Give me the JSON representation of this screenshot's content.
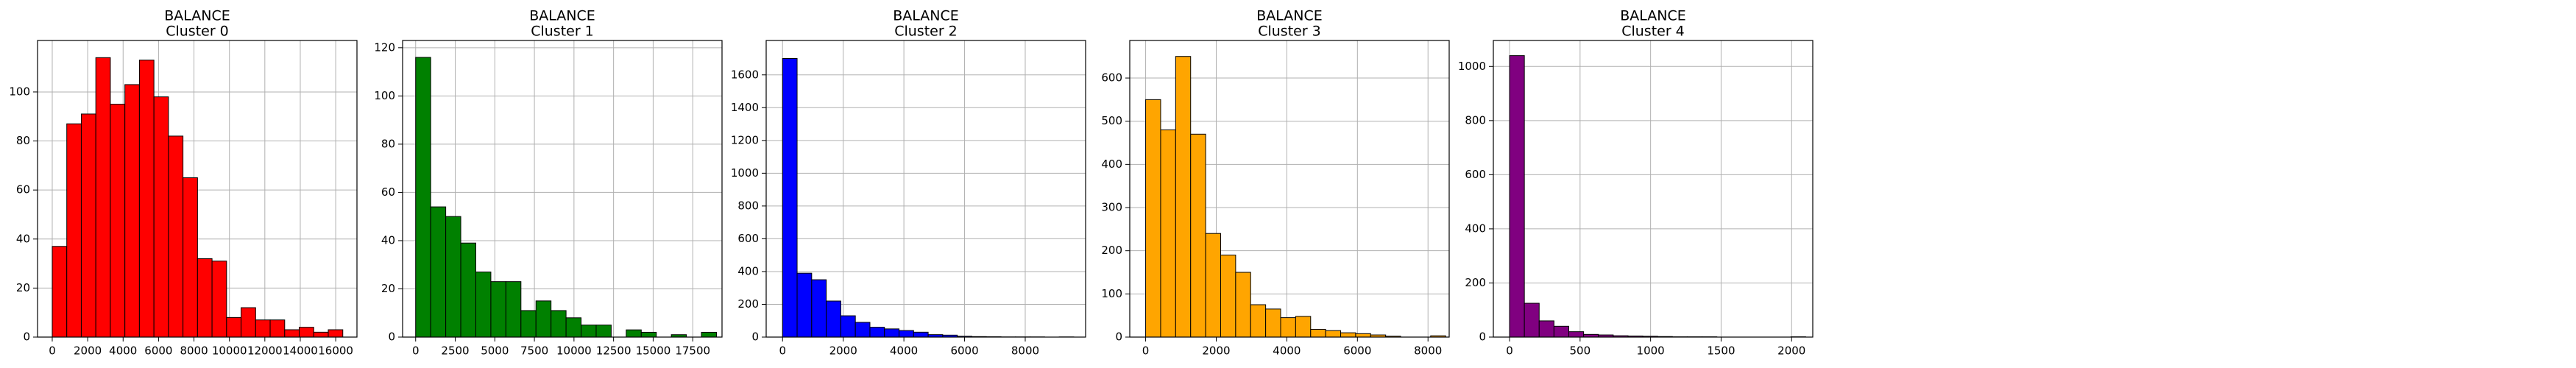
{
  "chart_data": [
    {
      "type": "histogram",
      "title": "BALANCE",
      "subtitle": "Cluster 0",
      "color": "#ff0000",
      "grid": true,
      "bins": [
        0,
        820,
        1640,
        2460,
        3280,
        4100,
        4920,
        5740,
        6560,
        7380,
        8200,
        9020,
        9840,
        10660,
        11480,
        12300,
        13120,
        13940,
        14760,
        15580,
        16400
      ],
      "values": [
        37,
        87,
        91,
        114,
        95,
        103,
        113,
        98,
        82,
        65,
        32,
        31,
        8,
        12,
        7,
        7,
        3,
        4,
        2,
        3
      ],
      "xlim": [
        -830,
        17200
      ],
      "ylim": [
        0,
        121
      ],
      "xticks": [
        0,
        2000,
        4000,
        6000,
        8000,
        10000,
        12000,
        14000,
        16000
      ],
      "yticks": [
        0,
        20,
        40,
        60,
        80,
        100
      ]
    },
    {
      "type": "histogram",
      "title": "BALANCE",
      "subtitle": "Cluster 1",
      "color": "#008000",
      "grid": true,
      "bins": [
        0,
        950,
        1900,
        2850,
        3800,
        4750,
        5700,
        6650,
        7600,
        8550,
        9500,
        10450,
        11400,
        12350,
        13300,
        14250,
        15200,
        16150,
        17100,
        18050,
        19000
      ],
      "values": [
        116,
        54,
        50,
        39,
        27,
        23,
        23,
        11,
        15,
        11,
        8,
        5,
        5,
        0,
        3,
        2,
        0,
        1,
        0,
        2
      ],
      "xlim": [
        -825,
        19350
      ],
      "ylim": [
        0,
        123
      ],
      "xticks": [
        0,
        2500,
        5000,
        7500,
        10000,
        12500,
        15000,
        17500
      ],
      "yticks": [
        0,
        20,
        40,
        60,
        80,
        100,
        120
      ]
    },
    {
      "type": "histogram",
      "title": "BALANCE",
      "subtitle": "Cluster 2",
      "color": "#0000ff",
      "grid": true,
      "bins": [
        0,
        480,
        960,
        1440,
        1920,
        2400,
        2880,
        3360,
        3840,
        4320,
        4800,
        5280,
        5760,
        6240,
        6720,
        7200,
        7680,
        8160,
        8640,
        9120,
        9600
      ],
      "values": [
        1700,
        390,
        350,
        220,
        130,
        90,
        60,
        50,
        40,
        30,
        15,
        12,
        5,
        3,
        2,
        1,
        1,
        1,
        0,
        1
      ],
      "xlim": [
        -540,
        9990
      ],
      "ylim": [
        0,
        1810
      ],
      "xticks": [
        0,
        2000,
        4000,
        6000,
        8000
      ],
      "yticks": [
        0,
        200,
        400,
        600,
        800,
        1000,
        1200,
        1400,
        1600
      ]
    },
    {
      "type": "histogram",
      "title": "BALANCE",
      "subtitle": "Cluster 3",
      "color": "#ffa500",
      "grid": true,
      "bins": [
        0,
        425,
        850,
        1275,
        1700,
        2125,
        2550,
        2975,
        3400,
        3825,
        4250,
        4675,
        5100,
        5525,
        5950,
        6375,
        6800,
        7225,
        7650,
        8075,
        8500
      ],
      "values": [
        550,
        480,
        650,
        470,
        240,
        190,
        150,
        75,
        65,
        45,
        48,
        18,
        15,
        10,
        8,
        5,
        2,
        0,
        0,
        3
      ],
      "xlim": [
        -450,
        8600
      ],
      "ylim": [
        0,
        687
      ],
      "xticks": [
        0,
        2000,
        4000,
        6000,
        8000
      ],
      "yticks": [
        0,
        100,
        200,
        300,
        400,
        500,
        600
      ]
    },
    {
      "type": "histogram",
      "title": "BALANCE",
      "subtitle": "Cluster 4",
      "color": "#800080",
      "grid": true,
      "bins": [
        0,
        105,
        210,
        315,
        420,
        525,
        630,
        735,
        840,
        945,
        1050,
        1155,
        1260,
        1365,
        1470,
        1575,
        1680,
        1785,
        1890,
        1995,
        2100
      ],
      "values": [
        1040,
        125,
        60,
        40,
        20,
        10,
        8,
        5,
        4,
        3,
        2,
        1,
        1,
        1,
        0,
        0,
        0,
        0,
        0,
        1
      ],
      "xlim": [
        -115,
        2150
      ],
      "ylim": [
        0,
        1096
      ],
      "xticks": [
        0,
        500,
        1000,
        1500,
        2000
      ],
      "yticks": [
        0,
        200,
        400,
        600,
        800,
        1000
      ]
    }
  ]
}
